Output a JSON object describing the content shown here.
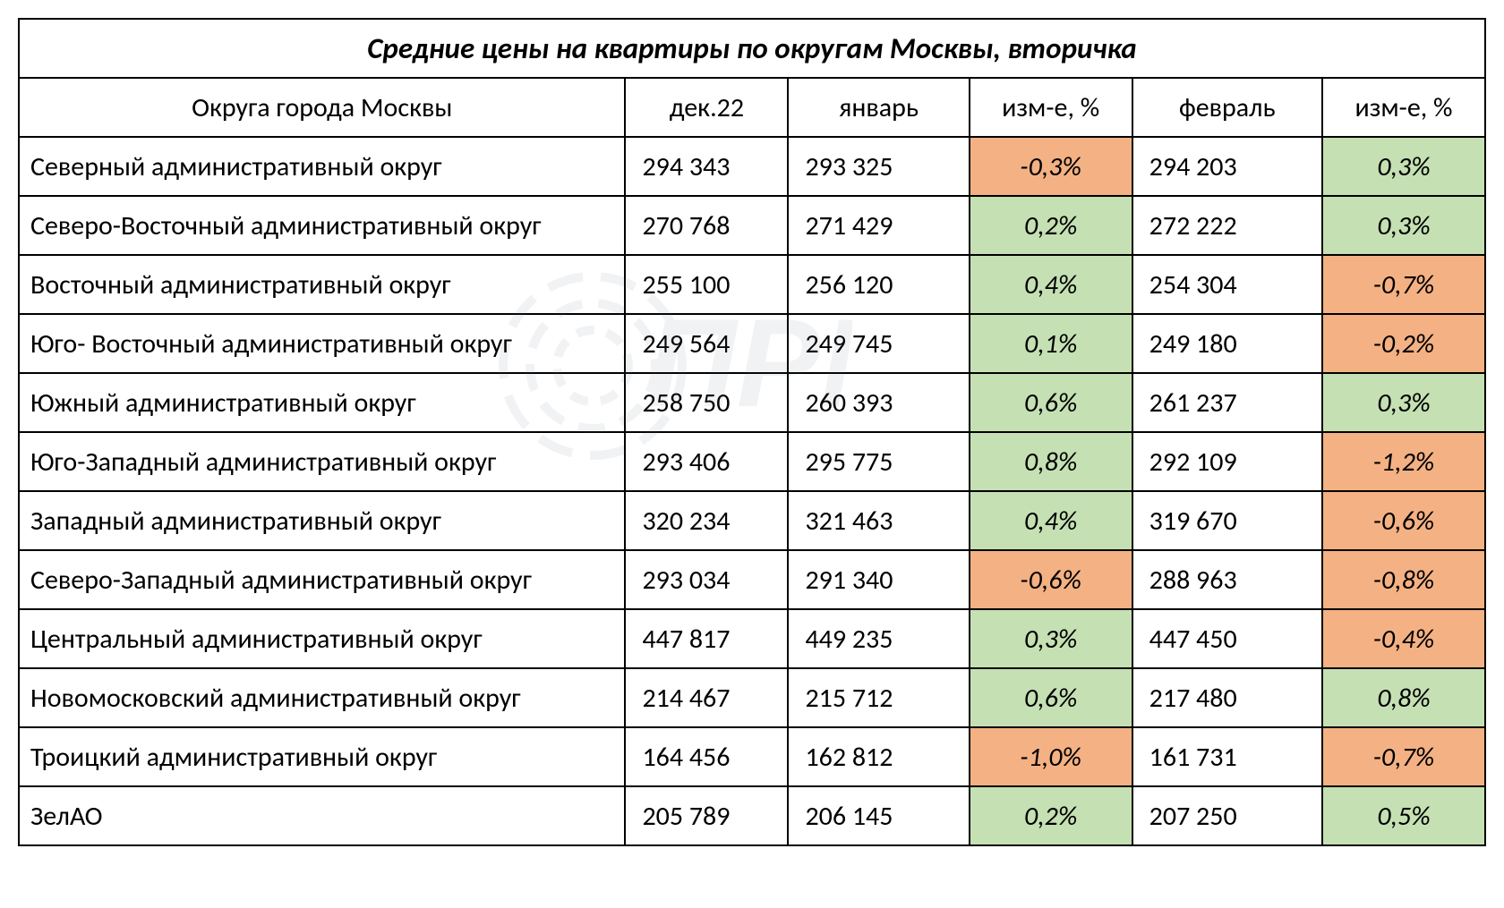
{
  "title": "Средние цены на  квартиры по округам Москвы, вторичка",
  "columns": {
    "district": "Округа города Москвы",
    "dec22": "дек.22",
    "jan": "январь",
    "chg1": "изм-е, %",
    "feb": "февраль",
    "chg2": "изм-е, %"
  },
  "colors": {
    "positive_bg": "#c5e0b3",
    "negative_bg": "#f4b183",
    "border": "#000000",
    "text": "#000000",
    "bg": "#ffffff"
  },
  "fontsize": {
    "title": 33,
    "body": 30
  },
  "rows": [
    {
      "district": "Северный административный округ",
      "dec22": "294 343",
      "jan": "293 325",
      "chg1": "-0,3%",
      "chg1_sign": "neg",
      "feb": "294 203",
      "chg2": "0,3%",
      "chg2_sign": "pos"
    },
    {
      "district": "Северо-Восточный административный округ",
      "dec22": "270 768",
      "jan": "271 429",
      "chg1": "0,2%",
      "chg1_sign": "pos",
      "feb": "272 222",
      "chg2": "0,3%",
      "chg2_sign": "pos"
    },
    {
      "district": "Восточный административный округ",
      "dec22": "255 100",
      "jan": "256 120",
      "chg1": "0,4%",
      "chg1_sign": "pos",
      "feb": "254 304",
      "chg2": "-0,7%",
      "chg2_sign": "neg"
    },
    {
      "district": "Юго- Восточный административный округ",
      "dec22": "249 564",
      "jan": "249 745",
      "chg1": "0,1%",
      "chg1_sign": "pos",
      "feb": "249 180",
      "chg2": "-0,2%",
      "chg2_sign": "neg"
    },
    {
      "district": "Южный административный округ",
      "dec22": "258 750",
      "jan": "260 393",
      "chg1": "0,6%",
      "chg1_sign": "pos",
      "feb": "261 237",
      "chg2": "0,3%",
      "chg2_sign": "pos"
    },
    {
      "district": "Юго-Западный административный округ",
      "dec22": "293 406",
      "jan": "295 775",
      "chg1": "0,8%",
      "chg1_sign": "pos",
      "feb": "292 109",
      "chg2": "-1,2%",
      "chg2_sign": "neg"
    },
    {
      "district": "Западный административный округ",
      "dec22": "320 234",
      "jan": "321 463",
      "chg1": "0,4%",
      "chg1_sign": "pos",
      "feb": "319 670",
      "chg2": "-0,6%",
      "chg2_sign": "neg"
    },
    {
      "district": "Северо-Западный административный округ",
      "dec22": "293 034",
      "jan": "291 340",
      "chg1": "-0,6%",
      "chg1_sign": "neg",
      "feb": "288 963",
      "chg2": "-0,8%",
      "chg2_sign": "neg"
    },
    {
      "district": "Центральный административный округ",
      "dec22": "447 817",
      "jan": "449 235",
      "chg1": "0,3%",
      "chg1_sign": "pos",
      "feb": "447 450",
      "chg2": "-0,4%",
      "chg2_sign": "neg"
    },
    {
      "district": "Новомосковский административный округ",
      "dec22": "214 467",
      "jan": "215 712",
      "chg1": "0,6%",
      "chg1_sign": "pos",
      "feb": "217 480",
      "chg2": "0,8%",
      "chg2_sign": "pos"
    },
    {
      "district": "Троицкий административный округ",
      "dec22": "164 456",
      "jan": "162 812",
      "chg1": "-1,0%",
      "chg1_sign": "neg",
      "feb": "161 731",
      "chg2": "-0,7%",
      "chg2_sign": "neg"
    },
    {
      "district": "ЗелАО",
      "dec22": "205 789",
      "jan": "206 145",
      "chg1": "0,2%",
      "chg1_sign": "pos",
      "feb": "207 250",
      "chg2": "0,5%",
      "chg2_sign": "pos"
    }
  ]
}
